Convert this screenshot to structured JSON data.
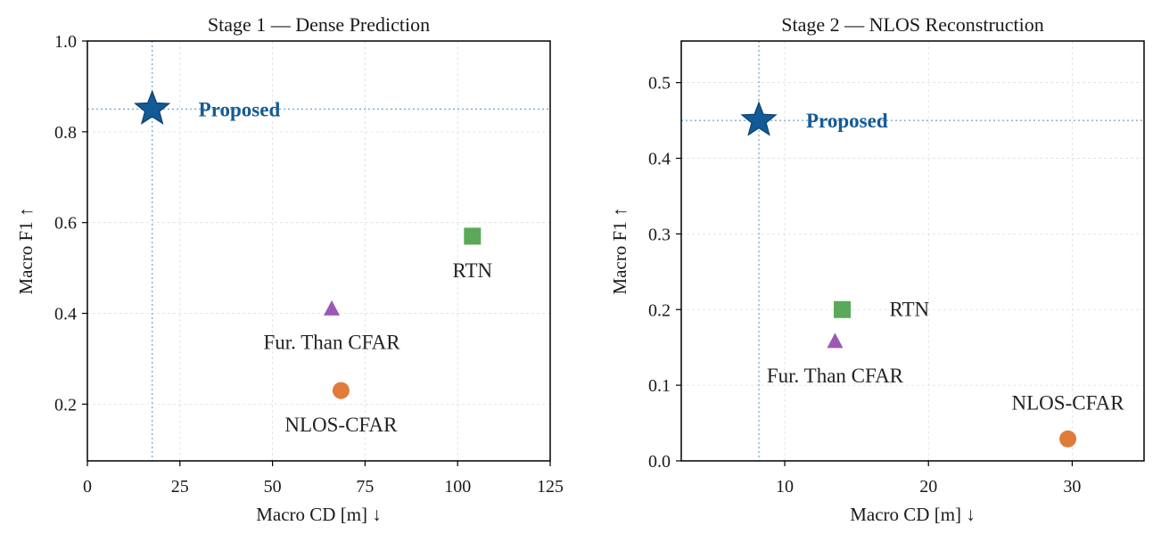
{
  "chart_data": [
    {
      "type": "scatter",
      "title": "Stage 1 — Dense Prediction",
      "xlabel": "Macro CD [m] ↓",
      "ylabel": "Macro F1 ↑",
      "xlim": [
        0,
        125
      ],
      "ylim": [
        0.075,
        1.0
      ],
      "xticks": [
        0,
        25,
        50,
        75,
        100,
        125
      ],
      "yticks": [
        0.2,
        0.4,
        0.6,
        0.8,
        1.0
      ],
      "xtick_labels": [
        "0",
        "25",
        "50",
        "75",
        "100",
        "125"
      ],
      "ytick_labels": [
        "0.2",
        "0.4",
        "0.6",
        "0.8",
        "1.0"
      ],
      "grid": true,
      "points": [
        {
          "label": "Proposed",
          "x": 17.5,
          "y": 0.85,
          "marker": "star",
          "color": "#135b96",
          "reference_lines": true
        },
        {
          "label": "RTN",
          "x": 104,
          "y": 0.57,
          "marker": "square",
          "color": "#59a958"
        },
        {
          "label": "Fur. Than CFAR",
          "x": 66,
          "y": 0.41,
          "marker": "triangle",
          "color": "#9b59b6"
        },
        {
          "label": "NLOS-CFAR",
          "x": 68.5,
          "y": 0.23,
          "marker": "circle",
          "color": "#e07b39"
        }
      ]
    },
    {
      "type": "scatter",
      "title": "Stage 2 — NLOS Reconstruction",
      "xlabel": "Macro CD [m] ↓",
      "ylabel": "Macro F1 ↑",
      "xlim": [
        2.8,
        35
      ],
      "ylim": [
        0.0,
        0.555
      ],
      "xticks": [
        10,
        20,
        30
      ],
      "yticks": [
        0.0,
        0.1,
        0.2,
        0.3,
        0.4,
        0.5
      ],
      "xtick_labels": [
        "10",
        "20",
        "30"
      ],
      "ytick_labels": [
        "0.0",
        "0.1",
        "0.2",
        "0.3",
        "0.4",
        "0.5"
      ],
      "grid": true,
      "points": [
        {
          "label": "Proposed",
          "x": 8.2,
          "y": 0.45,
          "marker": "star",
          "color": "#135b96",
          "reference_lines": true
        },
        {
          "label": "RTN",
          "x": 14.0,
          "y": 0.2,
          "marker": "square",
          "color": "#59a958"
        },
        {
          "label": "Fur. Than CFAR",
          "x": 13.5,
          "y": 0.158,
          "marker": "triangle",
          "color": "#9b59b6"
        },
        {
          "label": "NLOS-CFAR",
          "x": 29.7,
          "y": 0.029,
          "marker": "circle",
          "color": "#e07b39"
        }
      ]
    }
  ]
}
